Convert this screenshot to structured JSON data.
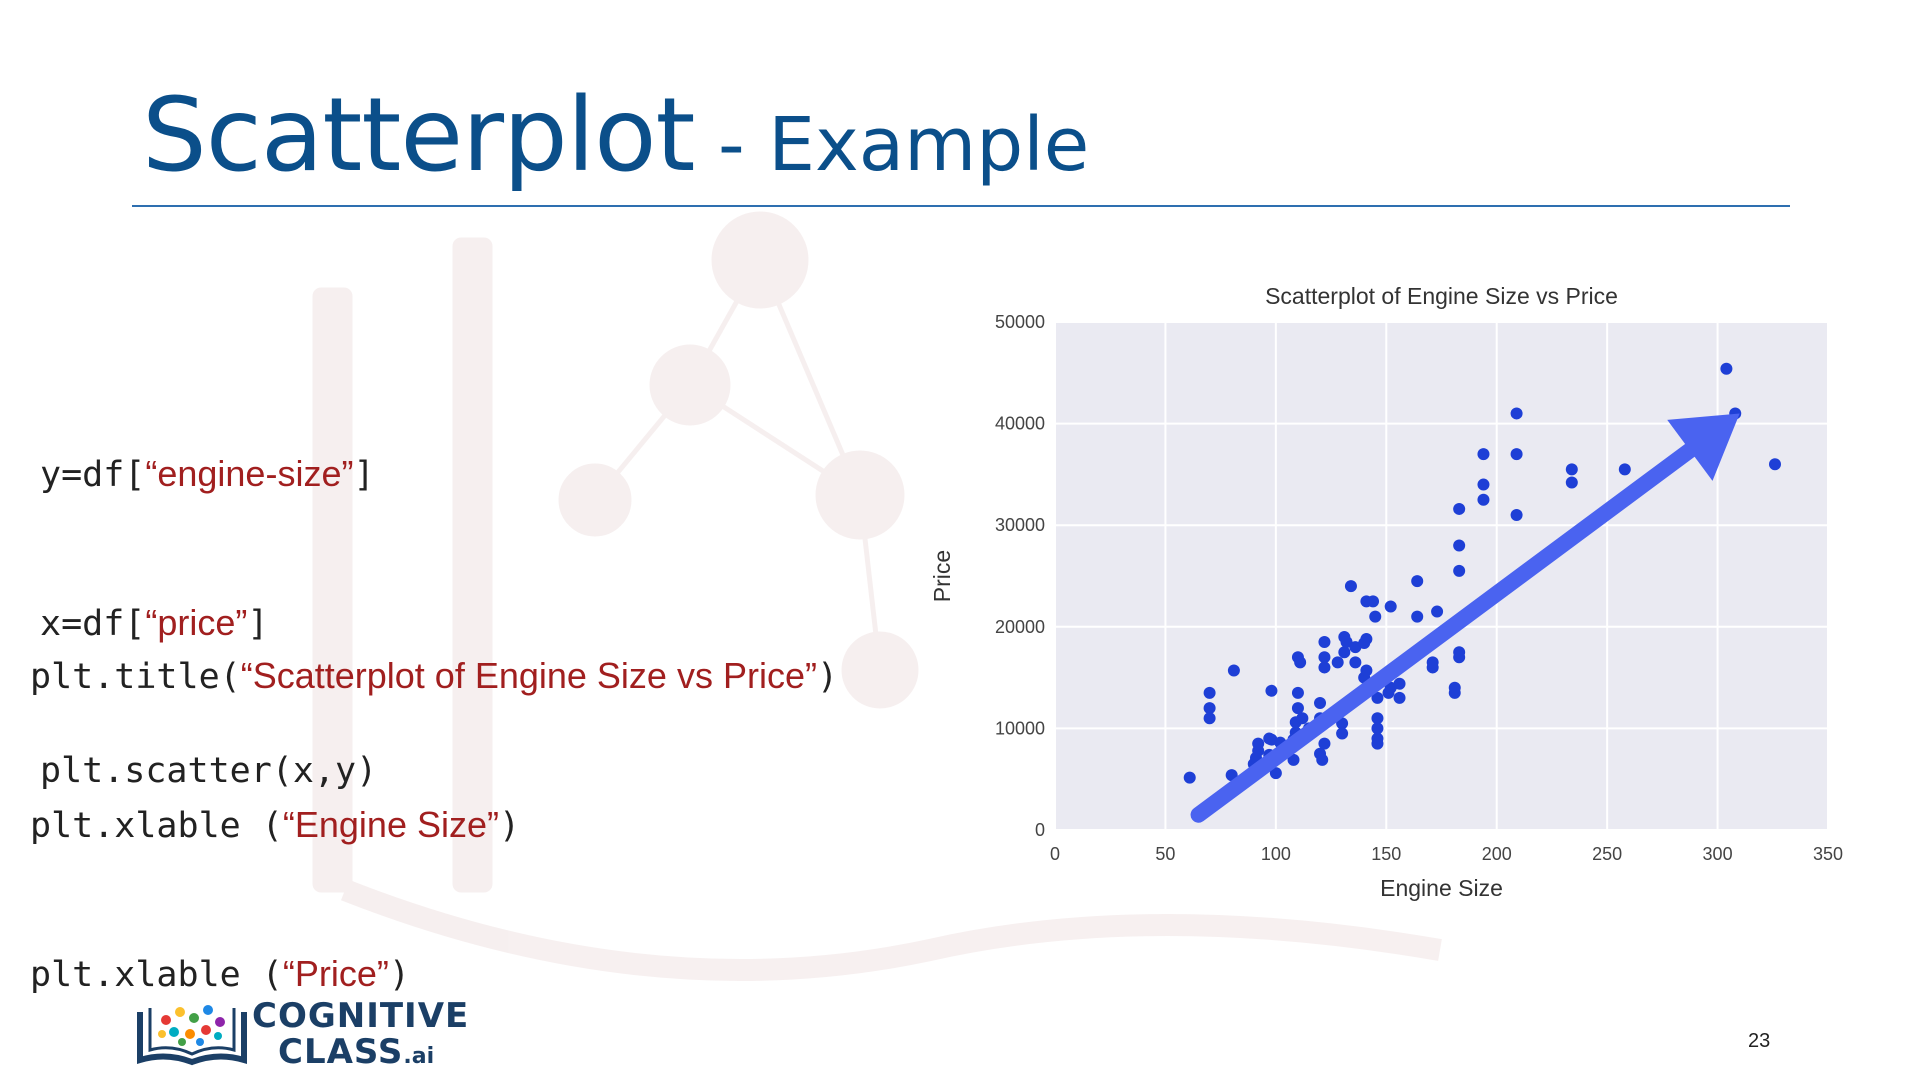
{
  "slide": {
    "title_main": "Scatterplot",
    "title_sep": " - ",
    "title_sub": "Example",
    "page_number": "23"
  },
  "code": {
    "lines": [
      {
        "prefix": "y=df[",
        "str": "“engine-size”",
        "suffix": "]"
      },
      {
        "prefix": "x=df[",
        "str": "“price”",
        "suffix": "]"
      },
      {
        "prefix": "plt.scatter(x,y)",
        "str": "",
        "suffix": ""
      },
      {
        "prefix": "plt.title(",
        "str": "“Scatterplot of Engine Size vs Price”",
        "suffix": ")"
      },
      {
        "prefix": "plt.xlable (",
        "str": "“Engine Size”",
        "suffix": ")"
      },
      {
        "prefix": "plt.xlable (",
        "str": "“Price”",
        "suffix": ")"
      }
    ]
  },
  "logo": {
    "line1": "COGNITIVE",
    "line2": "CLASS",
    "suffix": ".ai",
    "icon": "book-with-network-icon"
  },
  "colors": {
    "title": "#0b4f8a",
    "code_string": "#a11f1f",
    "points": "#1e3fd6",
    "arrow": "#4a63f0",
    "plot_bg": "#eaeaf2"
  },
  "chart_data": {
    "type": "scatter",
    "title": "Scatterplot of Engine Size vs Price",
    "xlabel": "Engine Size",
    "ylabel": "Price",
    "xlim": [
      0,
      350
    ],
    "ylim": [
      0,
      50000
    ],
    "xticks": [
      0,
      50,
      100,
      150,
      200,
      250,
      300,
      350
    ],
    "yticks": [
      0,
      10000,
      20000,
      30000,
      40000,
      50000
    ],
    "grid": true,
    "annotation": "arrow pointing up-right from (65, 1500) to (310, 41000)",
    "points": [
      [
        61,
        5150
      ],
      [
        70,
        13500
      ],
      [
        70,
        12000
      ],
      [
        70,
        11000
      ],
      [
        80,
        5400
      ],
      [
        81,
        15700
      ],
      [
        90,
        6500
      ],
      [
        91,
        7100
      ],
      [
        92,
        7800
      ],
      [
        92,
        8500
      ],
      [
        97,
        6800
      ],
      [
        97,
        7400
      ],
      [
        97,
        9000
      ],
      [
        98,
        6900
      ],
      [
        98,
        8900
      ],
      [
        98,
        13700
      ],
      [
        100,
        5600
      ],
      [
        100,
        7000
      ],
      [
        102,
        8600
      ],
      [
        103,
        7700
      ],
      [
        108,
        6900
      ],
      [
        108,
        8900
      ],
      [
        109,
        9600
      ],
      [
        109,
        10600
      ],
      [
        110,
        12000
      ],
      [
        110,
        17000
      ],
      [
        111,
        16500
      ],
      [
        112,
        11000
      ],
      [
        110,
        13500
      ],
      [
        120,
        11000
      ],
      [
        120,
        12500
      ],
      [
        120,
        7500
      ],
      [
        121,
        6900
      ],
      [
        122,
        8500
      ],
      [
        122,
        16000
      ],
      [
        122,
        17000
      ],
      [
        122,
        18500
      ],
      [
        130,
        9500
      ],
      [
        130,
        10500
      ],
      [
        130,
        12000
      ],
      [
        131,
        17500
      ],
      [
        131,
        19000
      ],
      [
        132,
        18500
      ],
      [
        134,
        24000
      ],
      [
        136,
        16500
      ],
      [
        136,
        18000
      ],
      [
        140,
        15000
      ],
      [
        141,
        15700
      ],
      [
        141,
        18800
      ],
      [
        141,
        22500
      ],
      [
        144,
        22500
      ],
      [
        146,
        9000
      ],
      [
        146,
        10000
      ],
      [
        146,
        11000
      ],
      [
        146,
        8500
      ],
      [
        146,
        13000
      ],
      [
        151,
        13500
      ],
      [
        152,
        14000
      ],
      [
        152,
        22000
      ],
      [
        156,
        13000
      ],
      [
        156,
        14400
      ],
      [
        164,
        21000
      ],
      [
        164,
        24500
      ],
      [
        171,
        16000
      ],
      [
        171,
        16500
      ],
      [
        173,
        21500
      ],
      [
        181,
        13500
      ],
      [
        181,
        14000
      ],
      [
        183,
        17000
      ],
      [
        183,
        17500
      ],
      [
        183,
        25500
      ],
      [
        183,
        28000
      ],
      [
        183,
        31600
      ],
      [
        194,
        32500
      ],
      [
        194,
        34000
      ],
      [
        194,
        37000
      ],
      [
        209,
        31000
      ],
      [
        209,
        37000
      ],
      [
        209,
        41000
      ],
      [
        234,
        34200
      ],
      [
        234,
        35500
      ],
      [
        258,
        35500
      ],
      [
        304,
        45400
      ],
      [
        308,
        41000
      ],
      [
        326,
        36000
      ],
      [
        145,
        21000
      ],
      [
        140,
        18400
      ],
      [
        128,
        16500
      ],
      [
        115,
        10000
      ]
    ]
  }
}
